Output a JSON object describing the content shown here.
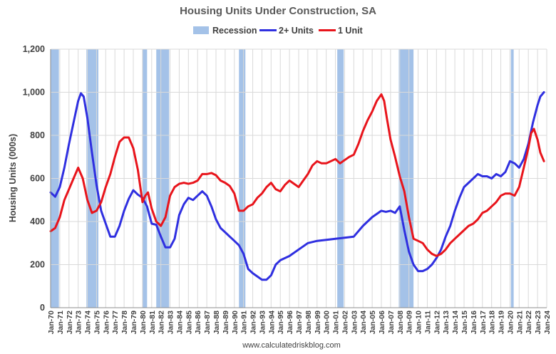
{
  "chart_data": {
    "type": "line",
    "title": "Housing Units Under Construction, SA",
    "ylabel": "Housing Units (000s)",
    "xlabel": "",
    "source": "www.calculatedriskblog.com",
    "ylim": [
      0,
      1200
    ],
    "yticks": [
      0,
      200,
      400,
      600,
      800,
      1000,
      1200
    ],
    "ytick_labels": [
      "0",
      "200",
      "400",
      "600",
      "800",
      "1,000",
      "1,200"
    ],
    "xlim": [
      1970.0,
      2024.0
    ],
    "xticks": [
      "Jan-70",
      "Jan-71",
      "Jan-72",
      "Jan-73",
      "Jan-74",
      "Jan-75",
      "Jan-76",
      "Jan-77",
      "Jan-78",
      "Jan-79",
      "Jan-80",
      "Jan-81",
      "Jan-82",
      "Jan-83",
      "Jan-84",
      "Jan-85",
      "Jan-86",
      "Jan-87",
      "Jan-88",
      "Jan-89",
      "Jan-90",
      "Jan-91",
      "Jan-92",
      "Jan-93",
      "Jan-94",
      "Jan-95",
      "Jan-96",
      "Jan-97",
      "Jan-98",
      "Jan-99",
      "Jan-00",
      "Jan-01",
      "Jan-02",
      "Jan-03",
      "Jan-04",
      "Jan-05",
      "Jan-06",
      "Jan-07",
      "Jan-08",
      "Jan-09",
      "Jan-10",
      "Jan-11",
      "Jan-12",
      "Jan-13",
      "Jan-14",
      "Jan-15",
      "Jan-16",
      "Jan-17",
      "Jan-18",
      "Jan-19",
      "Jan-20",
      "Jan-21",
      "Jan-22",
      "Jan-23",
      "Jan-24"
    ],
    "grid": true,
    "legend": [
      {
        "name": "Recession",
        "kind": "area",
        "color": "#a4c2e8"
      },
      {
        "name": "2+ Units",
        "kind": "line",
        "color": "#2f2fe0"
      },
      {
        "name": "1 Unit",
        "kind": "line",
        "color": "#e8141b"
      }
    ],
    "recessions": [
      [
        1970.0,
        1970.9
      ],
      [
        1973.9,
        1975.2
      ],
      [
        1980.0,
        1980.5
      ],
      [
        1981.5,
        1982.9
      ],
      [
        1990.5,
        1991.2
      ],
      [
        2001.2,
        2001.9
      ],
      [
        2007.9,
        2009.5
      ],
      [
        2020.1,
        2020.4
      ]
    ],
    "series": [
      {
        "name": "2+ Units",
        "color": "#2f2fe0",
        "x": [
          1970.0,
          1970.5,
          1971.0,
          1971.5,
          1972.0,
          1972.5,
          1973.0,
          1973.3,
          1973.6,
          1974.0,
          1974.5,
          1975.0,
          1975.5,
          1976.0,
          1976.5,
          1977.0,
          1977.5,
          1978.0,
          1978.5,
          1979.0,
          1979.5,
          1980.0,
          1980.5,
          1981.0,
          1981.5,
          1982.0,
          1982.5,
          1983.0,
          1983.5,
          1984.0,
          1984.5,
          1985.0,
          1985.5,
          1986.0,
          1986.5,
          1987.0,
          1987.5,
          1988.0,
          1988.5,
          1989.0,
          1989.5,
          1990.0,
          1990.5,
          1991.0,
          1991.5,
          1992.0,
          1992.5,
          1993.0,
          1993.5,
          1994.0,
          1994.5,
          1995.0,
          1996.0,
          1997.0,
          1998.0,
          1999.0,
          2000.0,
          2001.0,
          2002.0,
          2003.0,
          2004.0,
          2005.0,
          2006.0,
          2006.5,
          2007.0,
          2007.5,
          2008.0,
          2008.5,
          2009.0,
          2009.5,
          2010.0,
          2010.5,
          2011.0,
          2011.5,
          2012.0,
          2012.5,
          2013.0,
          2013.5,
          2014.0,
          2014.5,
          2015.0,
          2015.5,
          2016.0,
          2016.5,
          2017.0,
          2017.5,
          2018.0,
          2018.5,
          2019.0,
          2019.5,
          2020.0,
          2020.5,
          2021.0,
          2021.5,
          2022.0,
          2022.5,
          2023.0,
          2023.3,
          2023.7
        ],
        "values": [
          535,
          515,
          560,
          650,
          760,
          860,
          960,
          995,
          980,
          880,
          720,
          570,
          450,
          390,
          330,
          330,
          380,
          450,
          505,
          545,
          525,
          510,
          470,
          390,
          385,
          330,
          280,
          280,
          320,
          430,
          480,
          510,
          500,
          520,
          540,
          520,
          470,
          410,
          370,
          350,
          330,
          310,
          290,
          250,
          180,
          160,
          145,
          130,
          130,
          150,
          200,
          220,
          240,
          270,
          300,
          310,
          315,
          320,
          325,
          330,
          380,
          420,
          450,
          445,
          450,
          440,
          470,
          360,
          260,
          200,
          170,
          170,
          180,
          200,
          230,
          270,
          330,
          380,
          450,
          510,
          560,
          580,
          600,
          620,
          610,
          610,
          600,
          620,
          610,
          630,
          680,
          670,
          650,
          690,
          760,
          860,
          940,
          980,
          1000
        ]
      },
      {
        "name": "1 Unit",
        "color": "#e8141b",
        "x": [
          1970.0,
          1970.5,
          1971.0,
          1971.5,
          1972.0,
          1972.5,
          1973.0,
          1973.5,
          1974.0,
          1974.5,
          1975.0,
          1975.5,
          1976.0,
          1976.5,
          1977.0,
          1977.5,
          1978.0,
          1978.5,
          1979.0,
          1979.5,
          1980.0,
          1980.3,
          1980.6,
          1981.0,
          1981.5,
          1982.0,
          1982.5,
          1983.0,
          1983.5,
          1984.0,
          1984.5,
          1985.0,
          1985.5,
          1986.0,
          1986.5,
          1987.0,
          1987.5,
          1988.0,
          1988.5,
          1989.0,
          1989.5,
          1990.0,
          1990.5,
          1991.0,
          1991.5,
          1992.0,
          1992.5,
          1993.0,
          1993.5,
          1994.0,
          1994.5,
          1995.0,
          1995.5,
          1996.0,
          1996.5,
          1997.0,
          1997.5,
          1998.0,
          1998.5,
          1999.0,
          1999.5,
          2000.0,
          2000.5,
          2001.0,
          2001.5,
          2002.0,
          2002.5,
          2003.0,
          2003.5,
          2004.0,
          2004.5,
          2005.0,
          2005.5,
          2006.0,
          2006.3,
          2006.6,
          2007.0,
          2007.5,
          2008.0,
          2008.5,
          2009.0,
          2009.5,
          2010.0,
          2010.5,
          2011.0,
          2011.5,
          2012.0,
          2012.5,
          2013.0,
          2013.5,
          2014.0,
          2014.5,
          2015.0,
          2015.5,
          2016.0,
          2016.5,
          2017.0,
          2017.5,
          2018.0,
          2018.5,
          2019.0,
          2019.5,
          2020.0,
          2020.5,
          2021.0,
          2021.5,
          2022.0,
          2022.3,
          2022.6,
          2023.0,
          2023.3,
          2023.7
        ],
        "values": [
          355,
          370,
          420,
          500,
          550,
          600,
          650,
          600,
          500,
          440,
          450,
          490,
          560,
          620,
          700,
          770,
          790,
          790,
          740,
          640,
          490,
          520,
          535,
          460,
          400,
          380,
          420,
          520,
          560,
          575,
          580,
          575,
          580,
          590,
          620,
          620,
          625,
          615,
          590,
          580,
          565,
          530,
          450,
          450,
          470,
          480,
          510,
          530,
          560,
          580,
          550,
          540,
          570,
          590,
          575,
          560,
          590,
          620,
          660,
          680,
          670,
          670,
          680,
          690,
          670,
          685,
          700,
          710,
          760,
          820,
          870,
          910,
          960,
          990,
          960,
          880,
          780,
          700,
          610,
          540,
          420,
          320,
          310,
          300,
          270,
          250,
          240,
          250,
          270,
          300,
          320,
          340,
          360,
          380,
          390,
          410,
          440,
          450,
          470,
          490,
          520,
          530,
          530,
          520,
          560,
          650,
          740,
          810,
          830,
          780,
          720,
          680
        ]
      }
    ]
  }
}
